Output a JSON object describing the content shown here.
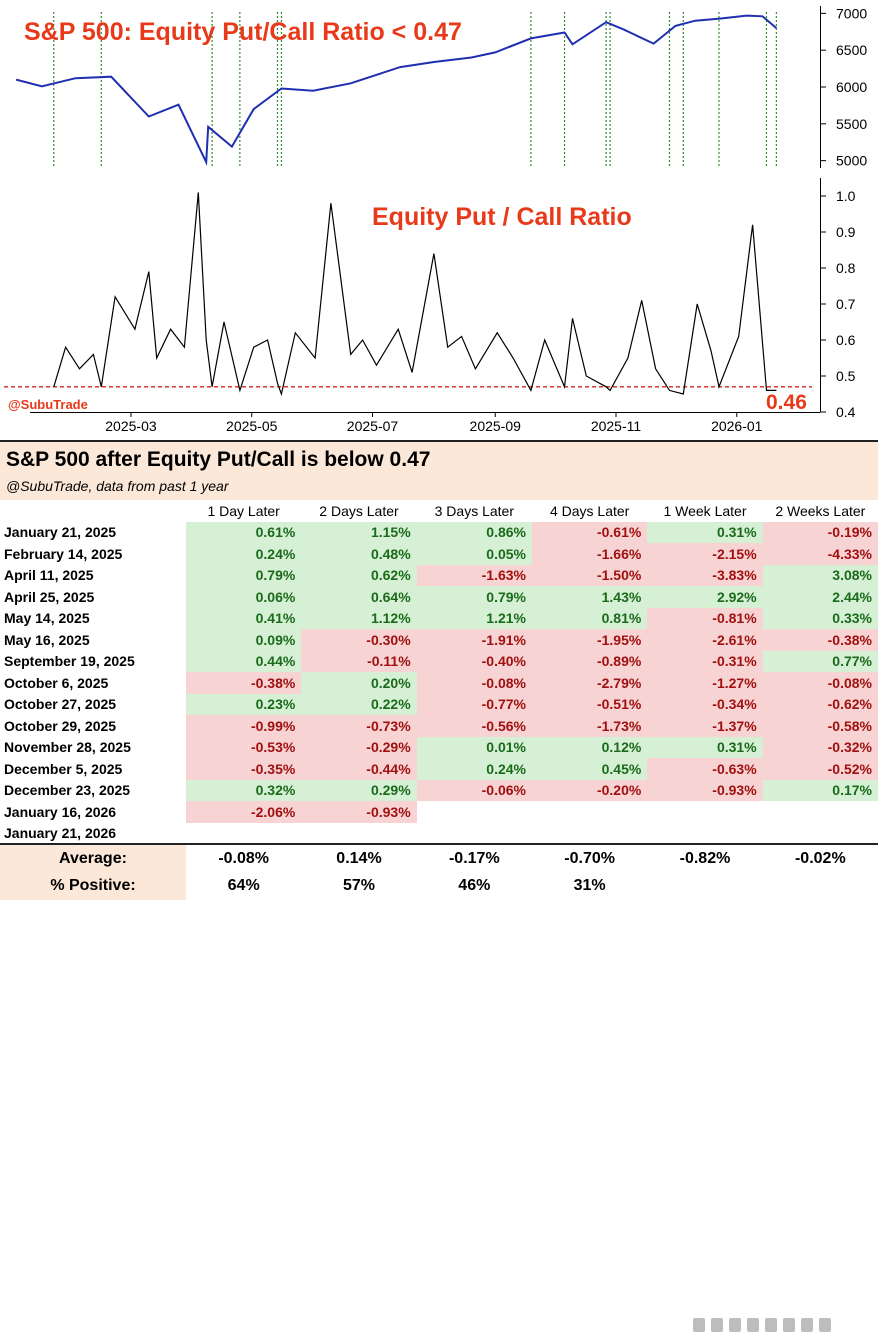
{
  "chart_data": [
    {
      "type": "line",
      "title": "S&P 500: Equity Put/Call Ratio < 0.47",
      "series": [
        {
          "name": "S&P 500",
          "x": [
            "2025-01-02",
            "2025-01-15",
            "2025-02-01",
            "2025-02-19",
            "2025-03-10",
            "2025-03-25",
            "2025-04-08",
            "2025-04-09",
            "2025-04-21",
            "2025-05-02",
            "2025-05-16",
            "2025-06-01",
            "2025-06-20",
            "2025-07-15",
            "2025-08-01",
            "2025-08-20",
            "2025-09-01",
            "2025-09-19",
            "2025-10-06",
            "2025-10-10",
            "2025-10-27",
            "2025-11-05",
            "2025-11-20",
            "2025-12-01",
            "2025-12-11",
            "2025-12-24",
            "2026-01-06",
            "2026-01-14",
            "2026-01-21"
          ],
          "values": [
            6100,
            6010,
            6120,
            6140,
            5600,
            5760,
            4980,
            5460,
            5190,
            5700,
            5980,
            5950,
            6050,
            6270,
            6340,
            6400,
            6470,
            6660,
            6740,
            6580,
            6880,
            6780,
            6590,
            6830,
            6900,
            6930,
            6970,
            6960,
            6800
          ]
        }
      ],
      "ylim": [
        4900,
        7100
      ],
      "yticks": [
        "5000",
        "5500",
        "6000",
        "6500",
        "7000"
      ],
      "signal_dates": [
        "2025-01-21",
        "2025-02-14",
        "2025-04-11",
        "2025-04-25",
        "2025-05-14",
        "2025-05-16",
        "2025-09-19",
        "2025-10-06",
        "2025-10-27",
        "2025-10-29",
        "2025-11-28",
        "2025-12-05",
        "2025-12-23",
        "2026-01-16",
        "2026-01-21"
      ]
    },
    {
      "type": "line",
      "title": "Equity Put / Call Ratio",
      "watermark": "@SubuTrade",
      "series": [
        {
          "name": "Equity Put/Call Ratio",
          "x": [
            "2025-01-21",
            "2025-01-27",
            "2025-02-03",
            "2025-02-10",
            "2025-02-14",
            "2025-02-21",
            "2025-03-03",
            "2025-03-10",
            "2025-03-14",
            "2025-03-21",
            "2025-03-28",
            "2025-04-04",
            "2025-04-08",
            "2025-04-11",
            "2025-04-17",
            "2025-04-25",
            "2025-05-02",
            "2025-05-09",
            "2025-05-14",
            "2025-05-16",
            "2025-05-23",
            "2025-06-02",
            "2025-06-10",
            "2025-06-20",
            "2025-06-26",
            "2025-07-03",
            "2025-07-14",
            "2025-07-21",
            "2025-08-01",
            "2025-08-08",
            "2025-08-15",
            "2025-08-22",
            "2025-09-02",
            "2025-09-10",
            "2025-09-19",
            "2025-09-26",
            "2025-10-06",
            "2025-10-10",
            "2025-10-17",
            "2025-10-27",
            "2025-10-29",
            "2025-11-07",
            "2025-11-14",
            "2025-11-21",
            "2025-11-28",
            "2025-12-05",
            "2025-12-12",
            "2025-12-19",
            "2025-12-23",
            "2026-01-02",
            "2026-01-09",
            "2026-01-16",
            "2026-01-21"
          ],
          "values": [
            0.47,
            0.58,
            0.52,
            0.56,
            0.47,
            0.72,
            0.63,
            0.79,
            0.55,
            0.63,
            0.58,
            1.01,
            0.6,
            0.47,
            0.65,
            0.46,
            0.58,
            0.6,
            0.48,
            0.45,
            0.62,
            0.55,
            0.98,
            0.56,
            0.6,
            0.53,
            0.63,
            0.51,
            0.84,
            0.58,
            0.61,
            0.52,
            0.62,
            0.55,
            0.46,
            0.6,
            0.47,
            0.66,
            0.5,
            0.47,
            0.46,
            0.55,
            0.71,
            0.52,
            0.46,
            0.45,
            0.7,
            0.57,
            0.47,
            0.61,
            0.92,
            0.46,
            0.46
          ]
        }
      ],
      "threshold": 0.47,
      "last_value_label": "0.46",
      "ylim": [
        0.4,
        1.05
      ],
      "yticks": [
        "0.4",
        "0.5",
        "0.6",
        "0.7",
        "0.8",
        "0.9",
        "1.0"
      ],
      "xticks": [
        "2025-03",
        "2025-05",
        "2025-07",
        "2025-09",
        "2025-11",
        "2026-01"
      ],
      "xrange": [
        "2025-01-09",
        "2026-02-08"
      ]
    },
    {
      "type": "table",
      "title": "S&P 500 after Equity Put/Call is below 0.47",
      "subtitle": "@SubuTrade, data from past 1 year",
      "columns": [
        "1 Day Later",
        "2 Days Later",
        "3 Days Later",
        "4 Days Later",
        "1 Week Later",
        "2 Weeks Later"
      ],
      "rows": [
        {
          "date": "January 21, 2025",
          "values": [
            "0.61%",
            "1.15%",
            "0.86%",
            "-0.61%",
            "0.31%",
            "-0.19%"
          ]
        },
        {
          "date": "February 14, 2025",
          "values": [
            "0.24%",
            "0.48%",
            "0.05%",
            "-1.66%",
            "-2.15%",
            "-4.33%"
          ]
        },
        {
          "date": "April 11, 2025",
          "values": [
            "0.79%",
            "0.62%",
            "-1.63%",
            "-1.50%",
            "-3.83%",
            "3.08%"
          ]
        },
        {
          "date": "April 25, 2025",
          "values": [
            "0.06%",
            "0.64%",
            "0.79%",
            "1.43%",
            "2.92%",
            "2.44%"
          ]
        },
        {
          "date": "May 14, 2025",
          "values": [
            "0.41%",
            "1.12%",
            "1.21%",
            "0.81%",
            "-0.81%",
            "0.33%"
          ]
        },
        {
          "date": "May 16, 2025",
          "values": [
            "0.09%",
            "-0.30%",
            "-1.91%",
            "-1.95%",
            "-2.61%",
            "-0.38%"
          ]
        },
        {
          "date": "September 19, 2025",
          "values": [
            "0.44%",
            "-0.11%",
            "-0.40%",
            "-0.89%",
            "-0.31%",
            "0.77%"
          ]
        },
        {
          "date": "October 6, 2025",
          "values": [
            "-0.38%",
            "0.20%",
            "-0.08%",
            "-2.79%",
            "-1.27%",
            "-0.08%"
          ]
        },
        {
          "date": "October 27, 2025",
          "values": [
            "0.23%",
            "0.22%",
            "-0.77%",
            "-0.51%",
            "-0.34%",
            "-0.62%"
          ]
        },
        {
          "date": "October 29, 2025",
          "values": [
            "-0.99%",
            "-0.73%",
            "-0.56%",
            "-1.73%",
            "-1.37%",
            "-0.58%"
          ]
        },
        {
          "date": "November 28, 2025",
          "values": [
            "-0.53%",
            "-0.29%",
            "0.01%",
            "0.12%",
            "0.31%",
            "-0.32%"
          ]
        },
        {
          "date": "December 5, 2025",
          "values": [
            "-0.35%",
            "-0.44%",
            "0.24%",
            "0.45%",
            "-0.63%",
            "-0.52%"
          ]
        },
        {
          "date": "December 23, 2025",
          "values": [
            "0.32%",
            "0.29%",
            "-0.06%",
            "-0.20%",
            "-0.93%",
            "0.17%"
          ]
        },
        {
          "date": "January 16, 2026",
          "values": [
            "-2.06%",
            "-0.93%",
            "",
            "",
            "",
            ""
          ]
        },
        {
          "date": "January 21, 2026",
          "values": [
            "",
            "",
            "",
            "",
            "",
            ""
          ]
        }
      ],
      "summary": [
        {
          "label": "Average:",
          "values": [
            "-0.08%",
            "0.14%",
            "-0.17%",
            "-0.70%",
            "-0.82%",
            "-0.02%"
          ]
        },
        {
          "label": "% Positive:",
          "values": [
            "64%",
            "57%",
            "46%",
            "31%",
            "",
            ""
          ]
        }
      ]
    }
  ],
  "colors": {
    "title_red": "#e8391a",
    "spx_line": "#1f2fb0",
    "signal_line": "#2e8b2e",
    "threshold_line": "#d42020",
    "pos_bg": "#d6f0d6",
    "neg_bg": "#f7d3d3"
  }
}
